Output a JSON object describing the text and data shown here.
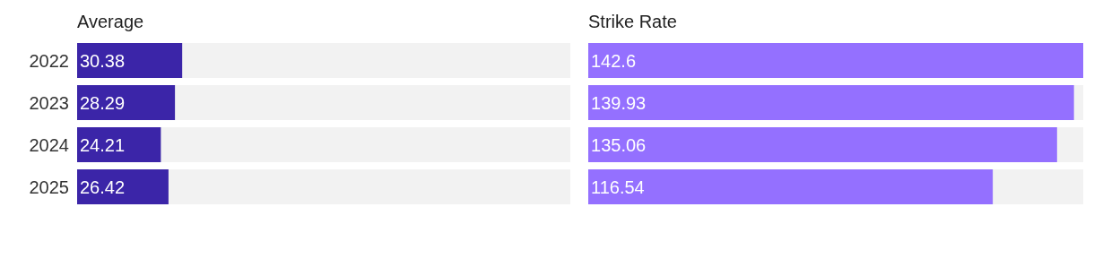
{
  "chart_data": [
    {
      "type": "bar",
      "orientation": "horizontal",
      "title": "Average",
      "categories": [
        "2022",
        "2023",
        "2024",
        "2025"
      ],
      "values": [
        30.38,
        28.29,
        24.21,
        26.42
      ],
      "color": "#3b25a8",
      "data_labels": true,
      "xlim": [
        0,
        142.6
      ],
      "tick_labels": "y"
    },
    {
      "type": "bar",
      "orientation": "horizontal",
      "title": "Strike Rate",
      "categories": [
        "2022",
        "2023",
        "2024",
        "2025"
      ],
      "values": [
        142.6,
        139.93,
        135.06,
        116.54
      ],
      "color": "#9470ff",
      "data_labels": true,
      "xlim": [
        0,
        142.6
      ],
      "tick_labels": false
    }
  ]
}
